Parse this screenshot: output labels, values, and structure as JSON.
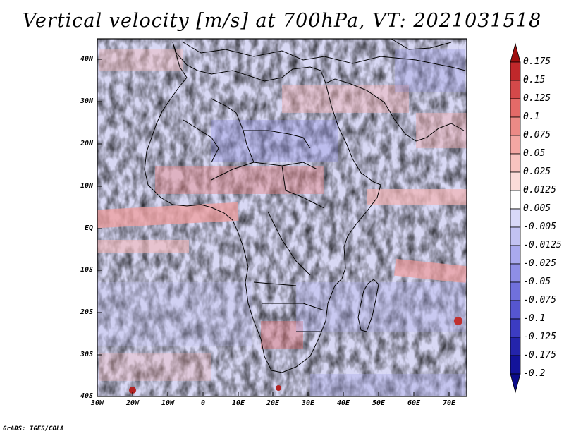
{
  "title": "Vertical velocity [m/s] at 700hPa, VT: 2021031518",
  "footer": "GrADS: IGES/COLA",
  "map": {
    "region": "Africa",
    "variable": "vertical velocity",
    "units": "m/s",
    "level": "700hPa",
    "valid_time": "2021031518"
  },
  "lat_ticks": [
    "40N",
    "30N",
    "20N",
    "10N",
    "EQ",
    "10S",
    "20S",
    "30S",
    "40S"
  ],
  "lon_ticks": [
    "30W",
    "20W",
    "10W",
    "0",
    "10E",
    "20E",
    "30E",
    "40E",
    "50E",
    "60E",
    "70E"
  ],
  "colorbar": {
    "labels": [
      "0.175",
      "0.15",
      "0.125",
      "0.1",
      "0.075",
      "0.05",
      "0.025",
      "0.0125",
      "0.005",
      "-0.005",
      "-0.0125",
      "-0.025",
      "-0.05",
      "-0.075",
      "-0.1",
      "-0.125",
      "-0.175",
      "-0.2"
    ],
    "colors": [
      "#9f0f0f",
      "#c0282b",
      "#d4494a",
      "#e46a68",
      "#ec8a86",
      "#f3a7a3",
      "#f8c3bf",
      "#fbdcd9",
      "#ffffff",
      "#d9d9f8",
      "#c2c2f2",
      "#a9a9ee",
      "#8e8ee6",
      "#7070dc",
      "#5656d0",
      "#3c3cc2",
      "#2424ab",
      "#13139a",
      "#0b0b8a"
    ]
  }
}
